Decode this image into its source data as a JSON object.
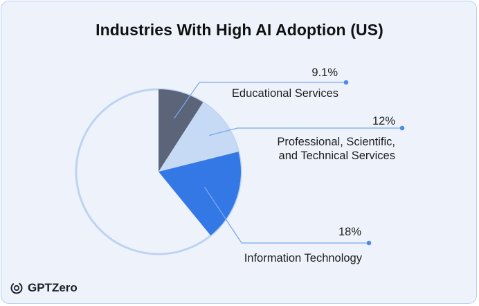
{
  "title": "Industries With High AI Adoption (US)",
  "brand": {
    "name": "GPTZero",
    "icon": "gptzero-logo-icon"
  },
  "colors": {
    "background": "#eef3fb",
    "border": "#b9d0ef",
    "ring": "#bcd3f3",
    "leader": "#7aa7ec",
    "dot": "#4d8be8"
  },
  "chart_data": {
    "type": "pie",
    "title": "Industries With High AI Adoption (US)",
    "slices": [
      {
        "label": "Educational Services",
        "value": 9.1,
        "value_label": "9.1%",
        "color": "#5b6478"
      },
      {
        "label": "Professional, Scientific,",
        "label2": "and Technical Services",
        "value": 12,
        "value_label": "12%",
        "color": "#c6daf6"
      },
      {
        "label": "Information Technology",
        "value": 18,
        "value_label": "18%",
        "color": "#3478e5"
      }
    ],
    "remainder_style": "outline-only"
  }
}
